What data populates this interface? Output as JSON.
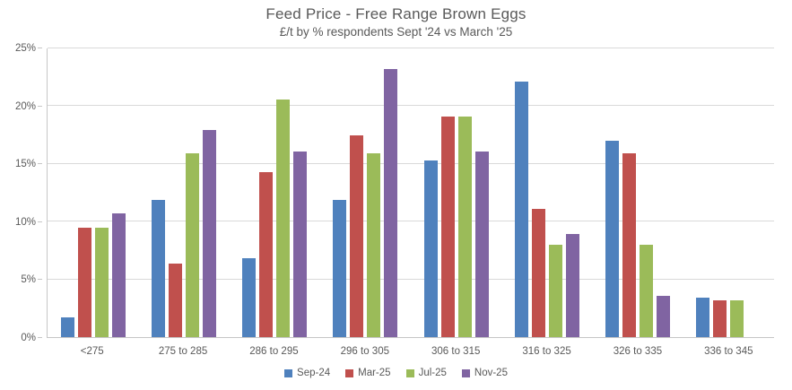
{
  "title": "Feed Price - Free Range Brown Eggs",
  "subtitle": "£/t by % respondents Sept '24 vs March '25",
  "chart_data": {
    "type": "bar",
    "title": "Feed Price - Free Range Brown Eggs",
    "subtitle": "£/t by % respondents Sept '24 vs March '25",
    "categories": [
      "<275",
      "275 to 285",
      "286 to 295",
      "296 to 305",
      "306 to 315",
      "316 to 325",
      "326 to 335",
      "336 to 345"
    ],
    "series": [
      {
        "name": "Sep-24",
        "color": "#4F81BD",
        "values": [
          1.7,
          11.9,
          6.8,
          11.9,
          15.3,
          22.1,
          17.0,
          3.4
        ]
      },
      {
        "name": "Mar-25",
        "color": "#C0504D",
        "values": [
          9.5,
          6.4,
          14.3,
          17.5,
          19.1,
          11.1,
          15.9,
          3.2
        ]
      },
      {
        "name": "Jul-25",
        "color": "#9BBB59",
        "values": [
          9.5,
          15.9,
          20.6,
          15.9,
          19.1,
          8.0,
          8.0,
          3.2
        ]
      },
      {
        "name": "Nov-25",
        "color": "#8064A2",
        "values": [
          10.7,
          17.9,
          16.1,
          23.2,
          16.1,
          8.9,
          3.6,
          0
        ]
      }
    ],
    "xlabel": "",
    "ylabel": "",
    "ylim": [
      0,
      25
    ],
    "ytick_step": 5,
    "ytick_labels": [
      "0%",
      "5%",
      "10%",
      "15%",
      "20%",
      "25%"
    ],
    "grid": true,
    "legend_position": "bottom"
  },
  "colors": {
    "text": "#595959",
    "gridline": "#d9d9d9",
    "axis": "#c6c6c6",
    "background": "#ffffff"
  }
}
